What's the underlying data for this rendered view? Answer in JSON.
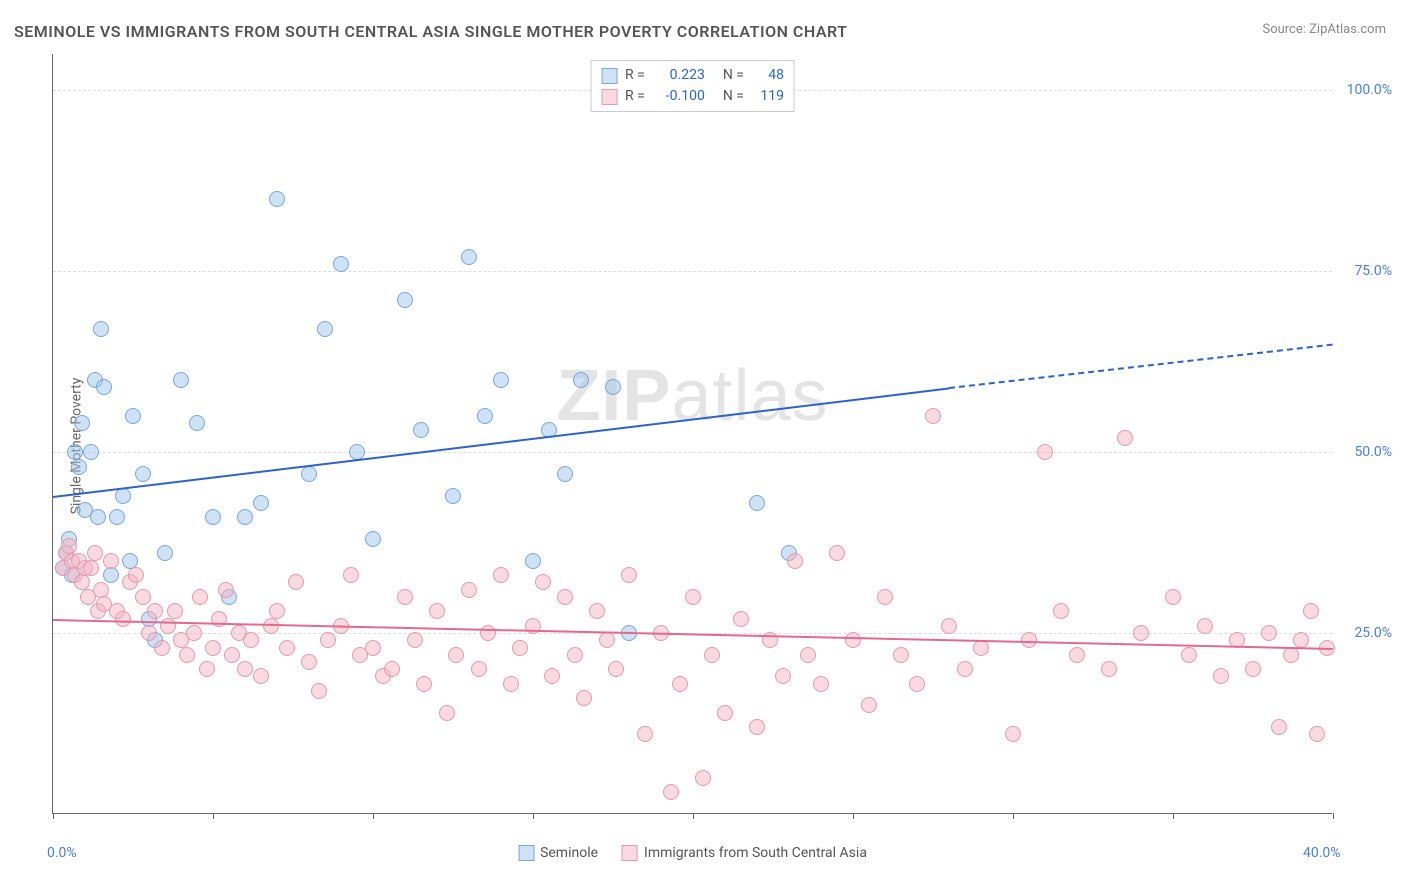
{
  "title": "SEMINOLE VS IMMIGRANTS FROM SOUTH CENTRAL ASIA SINGLE MOTHER POVERTY CORRELATION CHART",
  "source": "Source: ZipAtlas.com",
  "y_axis_label": "Single Mother Poverty",
  "watermark_bold": "ZIP",
  "watermark_rest": "atlas",
  "chart": {
    "type": "scatter",
    "background_color": "#ffffff",
    "grid_color": "#dddddd",
    "axis_color": "#666666",
    "tick_label_color": "#4a7fd8",
    "xlim": [
      0,
      40
    ],
    "ylim": [
      0,
      105
    ],
    "x_ticks": [
      0,
      5,
      10,
      15,
      20,
      25,
      30,
      35,
      40
    ],
    "x_tick_labels": {
      "0": "0.0%",
      "40": "40.0%"
    },
    "y_gridlines": [
      25,
      50,
      75,
      100
    ],
    "y_tick_labels": {
      "25": "25.0%",
      "50": "50.0%",
      "75": "75.0%",
      "100": "100.0%"
    },
    "marker_radius": 8,
    "marker_stroke_width": 1.5,
    "series": [
      {
        "name": "Seminole",
        "fill": "rgba(160,195,235,0.5)",
        "stroke": "#7aa8d8",
        "r_value": "0.223",
        "n_value": "48",
        "trend": {
          "color": "#2d62c7",
          "x1": 0,
          "y1": 44,
          "x2": 28,
          "y2": 59,
          "dash_x2": 40,
          "dash_y2": 65
        },
        "points": [
          [
            0.3,
            34
          ],
          [
            0.4,
            36
          ],
          [
            0.5,
            38
          ],
          [
            0.6,
            33
          ],
          [
            0.7,
            50
          ],
          [
            0.8,
            48
          ],
          [
            0.9,
            54
          ],
          [
            1.0,
            42
          ],
          [
            1.2,
            50
          ],
          [
            1.3,
            60
          ],
          [
            1.4,
            41
          ],
          [
            1.5,
            67
          ],
          [
            1.6,
            59
          ],
          [
            1.8,
            33
          ],
          [
            2.0,
            41
          ],
          [
            2.2,
            44
          ],
          [
            2.4,
            35
          ],
          [
            2.5,
            55
          ],
          [
            2.8,
            47
          ],
          [
            3.0,
            27
          ],
          [
            3.2,
            24
          ],
          [
            3.5,
            36
          ],
          [
            4.0,
            60
          ],
          [
            4.5,
            54
          ],
          [
            5.0,
            41
          ],
          [
            5.5,
            30
          ],
          [
            6.0,
            41
          ],
          [
            6.5,
            43
          ],
          [
            7.0,
            85
          ],
          [
            8.0,
            47
          ],
          [
            8.5,
            67
          ],
          [
            9.0,
            76
          ],
          [
            9.5,
            50
          ],
          [
            10.0,
            38
          ],
          [
            11.0,
            71
          ],
          [
            11.5,
            53
          ],
          [
            12.5,
            44
          ],
          [
            13.0,
            77
          ],
          [
            13.5,
            55
          ],
          [
            14.0,
            60
          ],
          [
            15.0,
            35
          ],
          [
            15.5,
            53
          ],
          [
            16.0,
            47
          ],
          [
            16.5,
            60
          ],
          [
            17.5,
            59
          ],
          [
            18.0,
            25
          ],
          [
            22.0,
            43
          ],
          [
            23.0,
            36
          ]
        ]
      },
      {
        "name": "Immigrants from South Central Asia",
        "fill": "rgba(245,180,195,0.5)",
        "stroke": "#e39aad",
        "r_value": "-0.100",
        "n_value": "119",
        "trend": {
          "color": "#e26a8e",
          "x1": 0,
          "y1": 27,
          "x2": 40,
          "y2": 23
        },
        "points": [
          [
            0.3,
            34
          ],
          [
            0.4,
            36
          ],
          [
            0.5,
            37
          ],
          [
            0.6,
            35
          ],
          [
            0.7,
            33
          ],
          [
            0.8,
            35
          ],
          [
            0.9,
            32
          ],
          [
            1.0,
            34
          ],
          [
            1.1,
            30
          ],
          [
            1.2,
            34
          ],
          [
            1.3,
            36
          ],
          [
            1.4,
            28
          ],
          [
            1.5,
            31
          ],
          [
            1.6,
            29
          ],
          [
            1.8,
            35
          ],
          [
            2.0,
            28
          ],
          [
            2.2,
            27
          ],
          [
            2.4,
            32
          ],
          [
            2.6,
            33
          ],
          [
            2.8,
            30
          ],
          [
            3.0,
            25
          ],
          [
            3.2,
            28
          ],
          [
            3.4,
            23
          ],
          [
            3.6,
            26
          ],
          [
            3.8,
            28
          ],
          [
            4.0,
            24
          ],
          [
            4.2,
            22
          ],
          [
            4.4,
            25
          ],
          [
            4.6,
            30
          ],
          [
            4.8,
            20
          ],
          [
            5.0,
            23
          ],
          [
            5.2,
            27
          ],
          [
            5.4,
            31
          ],
          [
            5.6,
            22
          ],
          [
            5.8,
            25
          ],
          [
            6.0,
            20
          ],
          [
            6.2,
            24
          ],
          [
            6.5,
            19
          ],
          [
            6.8,
            26
          ],
          [
            7.0,
            28
          ],
          [
            7.3,
            23
          ],
          [
            7.6,
            32
          ],
          [
            8.0,
            21
          ],
          [
            8.3,
            17
          ],
          [
            8.6,
            24
          ],
          [
            9.0,
            26
          ],
          [
            9.3,
            33
          ],
          [
            9.6,
            22
          ],
          [
            10.0,
            23
          ],
          [
            10.3,
            19
          ],
          [
            10.6,
            20
          ],
          [
            11.0,
            30
          ],
          [
            11.3,
            24
          ],
          [
            11.6,
            18
          ],
          [
            12.0,
            28
          ],
          [
            12.3,
            14
          ],
          [
            12.6,
            22
          ],
          [
            13.0,
            31
          ],
          [
            13.3,
            20
          ],
          [
            13.6,
            25
          ],
          [
            14.0,
            33
          ],
          [
            14.3,
            18
          ],
          [
            14.6,
            23
          ],
          [
            15.0,
            26
          ],
          [
            15.3,
            32
          ],
          [
            15.6,
            19
          ],
          [
            16.0,
            30
          ],
          [
            16.3,
            22
          ],
          [
            16.6,
            16
          ],
          [
            17.0,
            28
          ],
          [
            17.3,
            24
          ],
          [
            17.6,
            20
          ],
          [
            18.0,
            33
          ],
          [
            18.5,
            11
          ],
          [
            19.0,
            25
          ],
          [
            19.3,
            3
          ],
          [
            19.6,
            18
          ],
          [
            20.0,
            30
          ],
          [
            20.3,
            5
          ],
          [
            20.6,
            22
          ],
          [
            21.0,
            14
          ],
          [
            21.5,
            27
          ],
          [
            22.0,
            12
          ],
          [
            22.4,
            24
          ],
          [
            22.8,
            19
          ],
          [
            23.2,
            35
          ],
          [
            23.6,
            22
          ],
          [
            24.0,
            18
          ],
          [
            24.5,
            36
          ],
          [
            25.0,
            24
          ],
          [
            25.5,
            15
          ],
          [
            26.0,
            30
          ],
          [
            26.5,
            22
          ],
          [
            27.0,
            18
          ],
          [
            27.5,
            55
          ],
          [
            28.0,
            26
          ],
          [
            28.5,
            20
          ],
          [
            29.0,
            23
          ],
          [
            30.0,
            11
          ],
          [
            30.5,
            24
          ],
          [
            31.0,
            50
          ],
          [
            31.5,
            28
          ],
          [
            32.0,
            22
          ],
          [
            33.0,
            20
          ],
          [
            33.5,
            52
          ],
          [
            34.0,
            25
          ],
          [
            35.0,
            30
          ],
          [
            35.5,
            22
          ],
          [
            36.0,
            26
          ],
          [
            36.5,
            19
          ],
          [
            37.0,
            24
          ],
          [
            37.5,
            20
          ],
          [
            38.0,
            25
          ],
          [
            38.3,
            12
          ],
          [
            38.7,
            22
          ],
          [
            39.0,
            24
          ],
          [
            39.3,
            28
          ],
          [
            39.5,
            11
          ],
          [
            39.8,
            23
          ]
        ]
      }
    ],
    "legend_top": {
      "r_label": "R =",
      "n_label": "N =",
      "stat_color_r": "#2d62c7",
      "stat_color_n": "#2d62c7"
    },
    "legend_bottom_label_color": "#555555"
  }
}
